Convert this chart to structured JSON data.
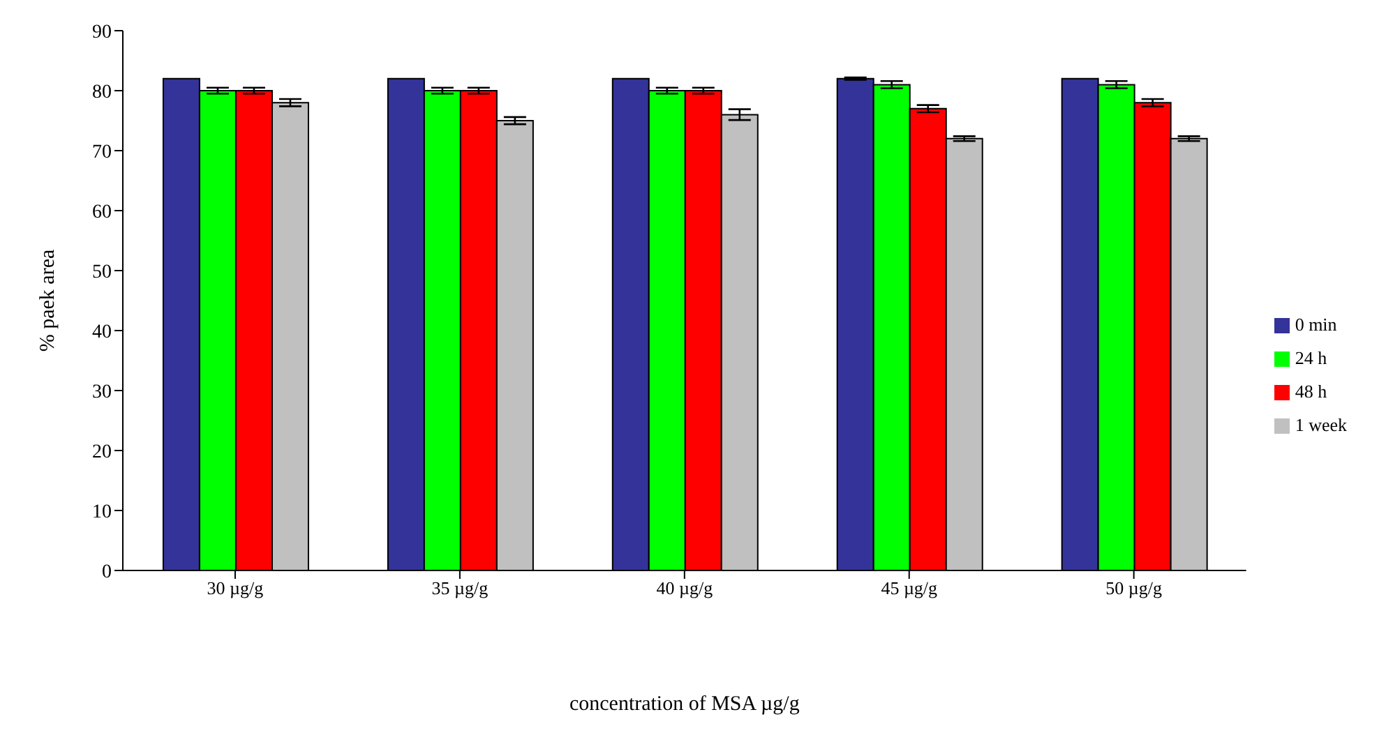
{
  "chart_data": {
    "type": "bar",
    "xlabel": "concentration of MSA µg/g",
    "ylabel": "% paek area",
    "categories": [
      "30 µg/g",
      "35 µg/g",
      "40 µg/g",
      "45 µg/g",
      "50 µg/g"
    ],
    "series": [
      {
        "name": "0 min",
        "color": "#333399",
        "values": [
          82,
          82,
          82,
          82,
          82
        ],
        "errors": [
          null,
          null,
          null,
          0.2,
          null
        ]
      },
      {
        "name": "24 h",
        "color": "#00ff00",
        "values": [
          80,
          80,
          80,
          81,
          81
        ],
        "errors": [
          0.5,
          0.5,
          0.5,
          0.6,
          0.6
        ]
      },
      {
        "name": "48 h",
        "color": "#ff0000",
        "values": [
          80,
          80,
          80,
          77,
          78
        ],
        "errors": [
          0.5,
          0.5,
          0.5,
          0.6,
          0.6
        ]
      },
      {
        "name": "1 week",
        "color": "#c0c0c0",
        "values": [
          78,
          75,
          76,
          72,
          72
        ],
        "errors": [
          0.6,
          0.6,
          0.9,
          0.4,
          0.4
        ]
      }
    ],
    "ylim": [
      0,
      90
    ],
    "yticks": [
      0,
      10,
      20,
      30,
      40,
      50,
      60,
      70,
      80,
      90
    ],
    "grid": false,
    "legend": "right"
  }
}
